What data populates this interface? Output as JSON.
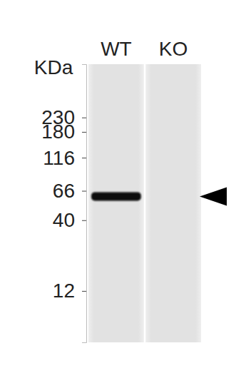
{
  "chart_data": {
    "type": "blot",
    "y_label": "KDa",
    "categories": [
      "WT",
      "KO"
    ],
    "values": [
      60,
      null
    ],
    "log": "y",
    "ylim": [
      5,
      570
    ],
    "yticks": [
      12,
      40,
      66,
      116,
      180,
      230
    ],
    "color": "#0a0a0a"
  }
}
